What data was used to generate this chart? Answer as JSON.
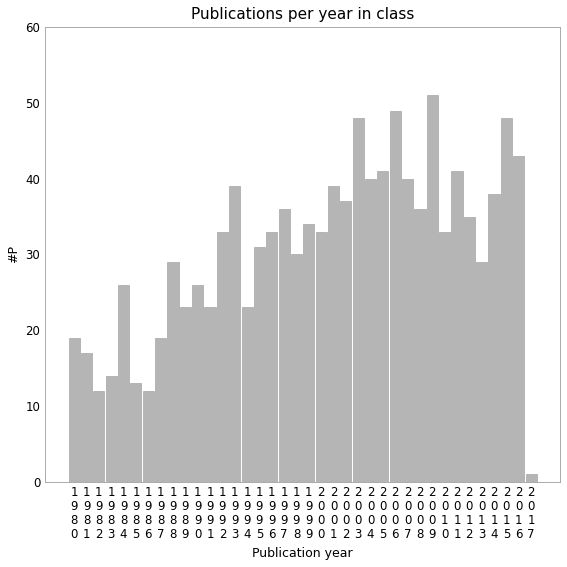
{
  "title": "Publications per year in class",
  "xlabel": "Publication year",
  "ylabel": "#P",
  "years": [
    1980,
    1981,
    1982,
    1983,
    1984,
    1985,
    1986,
    1987,
    1988,
    1989,
    1990,
    1991,
    1992,
    1993,
    1994,
    1995,
    1996,
    1997,
    1998,
    1999,
    2000,
    2001,
    2002,
    2003,
    2004,
    2005,
    2006,
    2007,
    2008,
    2009,
    2010,
    2011,
    2012,
    2013,
    2014,
    2015,
    2016,
    2017
  ],
  "values": [
    19,
    17,
    12,
    14,
    26,
    13,
    12,
    19,
    29,
    23,
    26,
    23,
    33,
    39,
    23,
    31,
    33,
    36,
    30,
    34,
    33,
    39,
    37,
    48,
    40,
    41,
    49,
    40,
    36,
    51,
    33,
    41,
    35,
    29,
    38,
    48,
    43,
    1
  ],
  "bar_color": "#b5b5b5",
  "bar_edge_color": "#999999",
  "ylim": [
    0,
    60
  ],
  "yticks": [
    0,
    10,
    20,
    30,
    40,
    50,
    60
  ],
  "bg_color": "#ffffff",
  "title_fontsize": 11,
  "label_fontsize": 9,
  "tick_fontsize": 8.5
}
